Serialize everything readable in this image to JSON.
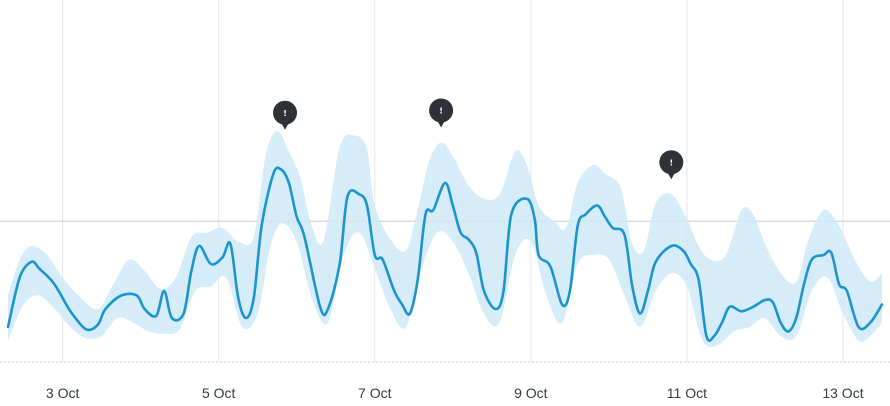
{
  "chart_data": {
    "type": "line",
    "title": "",
    "xlabel": "",
    "ylabel": "",
    "x_ticks": [
      "3 Oct",
      "5 Oct",
      "7 Oct",
      "9 Oct",
      "11 Oct",
      "13 Oct"
    ],
    "x_tick_days": [
      3,
      5,
      7,
      9,
      11,
      13
    ],
    "xlim": [
      2.3,
      13.5
    ],
    "ylim": [
      0,
      100
    ],
    "reference_line_y": 55,
    "baseline_y": 0,
    "grid": "vertical lines at each date tick",
    "anomaly_icon": "alert-marker-icon",
    "anomaly_glyph": "!",
    "anomaly_x": [
      5.85,
      7.85,
      10.8
    ],
    "colors": {
      "line": "#1b95cc",
      "band": "#cfe9f8",
      "grid": "#e3e7eb",
      "reference": "#c8cdd2",
      "marker": "#2e3136"
    },
    "series": [
      {
        "values": [
          [
            2.3,
            8
          ],
          [
            2.45,
            30
          ],
          [
            2.6,
            37
          ],
          [
            2.7,
            34
          ],
          [
            2.85,
            29
          ],
          [
            2.95,
            24
          ],
          [
            3.1,
            15
          ],
          [
            3.3,
            7
          ],
          [
            3.45,
            9
          ],
          [
            3.55,
            16
          ],
          [
            3.75,
            22
          ],
          [
            3.95,
            22
          ],
          [
            4.05,
            16
          ],
          [
            4.2,
            13
          ],
          [
            4.3,
            24
          ],
          [
            4.4,
            12
          ],
          [
            4.55,
            14
          ],
          [
            4.65,
            33
          ],
          [
            4.75,
            44
          ],
          [
            4.9,
            36
          ],
          [
            5.05,
            39
          ],
          [
            5.15,
            45
          ],
          [
            5.25,
            21
          ],
          [
            5.35,
            12
          ],
          [
            5.45,
            21
          ],
          [
            5.55,
            53
          ],
          [
            5.7,
            76
          ],
          [
            5.8,
            78
          ],
          [
            5.9,
            72
          ],
          [
            6.0,
            57
          ],
          [
            6.1,
            48
          ],
          [
            6.3,
            17
          ],
          [
            6.4,
            16
          ],
          [
            6.55,
            36
          ],
          [
            6.65,
            66
          ],
          [
            6.8,
            67
          ],
          [
            6.9,
            62
          ],
          [
            7.0,
            40
          ],
          [
            7.1,
            38
          ],
          [
            7.25,
            24
          ],
          [
            7.35,
            18
          ],
          [
            7.45,
            14
          ],
          [
            7.55,
            29
          ],
          [
            7.65,
            58
          ],
          [
            7.75,
            60
          ],
          [
            7.9,
            72
          ],
          [
            8.0,
            62
          ],
          [
            8.1,
            50
          ],
          [
            8.2,
            47
          ],
          [
            8.3,
            41
          ],
          [
            8.4,
            24
          ],
          [
            8.55,
            16
          ],
          [
            8.65,
            24
          ],
          [
            8.75,
            58
          ],
          [
            8.95,
            65
          ],
          [
            9.05,
            56
          ],
          [
            9.1,
            40
          ],
          [
            9.25,
            35
          ],
          [
            9.4,
            18
          ],
          [
            9.5,
            24
          ],
          [
            9.6,
            53
          ],
          [
            9.7,
            58
          ],
          [
            9.85,
            62
          ],
          [
            9.95,
            57
          ],
          [
            10.05,
            52
          ],
          [
            10.2,
            49
          ],
          [
            10.3,
            26
          ],
          [
            10.4,
            14
          ],
          [
            10.5,
            24
          ],
          [
            10.6,
            37
          ],
          [
            10.8,
            44
          ],
          [
            10.95,
            42
          ],
          [
            11.05,
            36
          ],
          [
            11.15,
            29
          ],
          [
            11.25,
            4
          ],
          [
            11.35,
            4
          ],
          [
            11.45,
            10
          ],
          [
            11.55,
            17
          ],
          [
            11.7,
            15
          ],
          [
            11.85,
            17
          ],
          [
            12.0,
            20
          ],
          [
            12.1,
            19
          ],
          [
            12.2,
            10
          ],
          [
            12.3,
            6
          ],
          [
            12.4,
            12
          ],
          [
            12.5,
            27
          ],
          [
            12.6,
            38
          ],
          [
            12.75,
            40
          ],
          [
            12.85,
            41
          ],
          [
            12.95,
            27
          ],
          [
            13.05,
            24
          ],
          [
            13.2,
            8
          ],
          [
            13.35,
            10
          ],
          [
            13.5,
            18
          ]
        ],
        "band_upper": [
          [
            2.3,
            22
          ],
          [
            2.45,
            38
          ],
          [
            2.6,
            44
          ],
          [
            2.8,
            40
          ],
          [
            3.0,
            30
          ],
          [
            3.2,
            22
          ],
          [
            3.45,
            16
          ],
          [
            3.65,
            27
          ],
          [
            3.85,
            38
          ],
          [
            4.05,
            33
          ],
          [
            4.25,
            25
          ],
          [
            4.45,
            30
          ],
          [
            4.65,
            48
          ],
          [
            4.85,
            50
          ],
          [
            5.05,
            52
          ],
          [
            5.25,
            46
          ],
          [
            5.45,
            48
          ],
          [
            5.6,
            84
          ],
          [
            5.75,
            95
          ],
          [
            5.9,
            86
          ],
          [
            6.05,
            74
          ],
          [
            6.2,
            52
          ],
          [
            6.35,
            47
          ],
          [
            6.55,
            88
          ],
          [
            6.75,
            93
          ],
          [
            6.9,
            87
          ],
          [
            7.0,
            62
          ],
          [
            7.2,
            47
          ],
          [
            7.4,
            42
          ],
          [
            7.55,
            60
          ],
          [
            7.7,
            82
          ],
          [
            7.85,
            90
          ],
          [
            8.0,
            84
          ],
          [
            8.2,
            71
          ],
          [
            8.4,
            65
          ],
          [
            8.6,
            67
          ],
          [
            8.8,
            86
          ],
          [
            8.95,
            80
          ],
          [
            9.1,
            62
          ],
          [
            9.3,
            55
          ],
          [
            9.45,
            52
          ],
          [
            9.6,
            72
          ],
          [
            9.8,
            80
          ],
          [
            9.95,
            76
          ],
          [
            10.15,
            70
          ],
          [
            10.3,
            45
          ],
          [
            10.45,
            42
          ],
          [
            10.6,
            63
          ],
          [
            10.8,
            67
          ],
          [
            11.0,
            56
          ],
          [
            11.15,
            44
          ],
          [
            11.3,
            38
          ],
          [
            11.5,
            40
          ],
          [
            11.7,
            60
          ],
          [
            11.85,
            58
          ],
          [
            12.0,
            45
          ],
          [
            12.2,
            32
          ],
          [
            12.4,
            28
          ],
          [
            12.55,
            46
          ],
          [
            12.75,
            60
          ],
          [
            12.95,
            53
          ],
          [
            13.15,
            38
          ],
          [
            13.35,
            28
          ],
          [
            13.5,
            32
          ]
        ],
        "band_lower": [
          [
            2.3,
            2
          ],
          [
            2.5,
            18
          ],
          [
            2.7,
            22
          ],
          [
            2.9,
            16
          ],
          [
            3.1,
            8
          ],
          [
            3.3,
            3
          ],
          [
            3.5,
            4
          ],
          [
            3.7,
            12
          ],
          [
            3.9,
            10
          ],
          [
            4.1,
            6
          ],
          [
            4.3,
            5
          ],
          [
            4.5,
            7
          ],
          [
            4.7,
            24
          ],
          [
            4.9,
            26
          ],
          [
            5.1,
            30
          ],
          [
            5.3,
            8
          ],
          [
            5.5,
            14
          ],
          [
            5.65,
            42
          ],
          [
            5.8,
            54
          ],
          [
            6.0,
            46
          ],
          [
            6.2,
            20
          ],
          [
            6.4,
            10
          ],
          [
            6.6,
            40
          ],
          [
            6.8,
            50
          ],
          [
            7.0,
            34
          ],
          [
            7.2,
            16
          ],
          [
            7.4,
            8
          ],
          [
            7.6,
            34
          ],
          [
            7.8,
            50
          ],
          [
            8.0,
            46
          ],
          [
            8.2,
            32
          ],
          [
            8.4,
            14
          ],
          [
            8.6,
            10
          ],
          [
            8.8,
            40
          ],
          [
            9.0,
            46
          ],
          [
            9.2,
            22
          ],
          [
            9.4,
            10
          ],
          [
            9.6,
            36
          ],
          [
            9.8,
            40
          ],
          [
            10.0,
            38
          ],
          [
            10.2,
            22
          ],
          [
            10.4,
            8
          ],
          [
            10.6,
            24
          ],
          [
            10.8,
            32
          ],
          [
            11.0,
            26
          ],
          [
            11.2,
            2
          ],
          [
            11.4,
            0
          ],
          [
            11.6,
            6
          ],
          [
            11.8,
            8
          ],
          [
            12.0,
            12
          ],
          [
            12.2,
            4
          ],
          [
            12.4,
            4
          ],
          [
            12.6,
            24
          ],
          [
            12.8,
            30
          ],
          [
            13.0,
            14
          ],
          [
            13.2,
            2
          ],
          [
            13.35,
            4
          ],
          [
            13.5,
            10
          ]
        ]
      }
    ]
  }
}
